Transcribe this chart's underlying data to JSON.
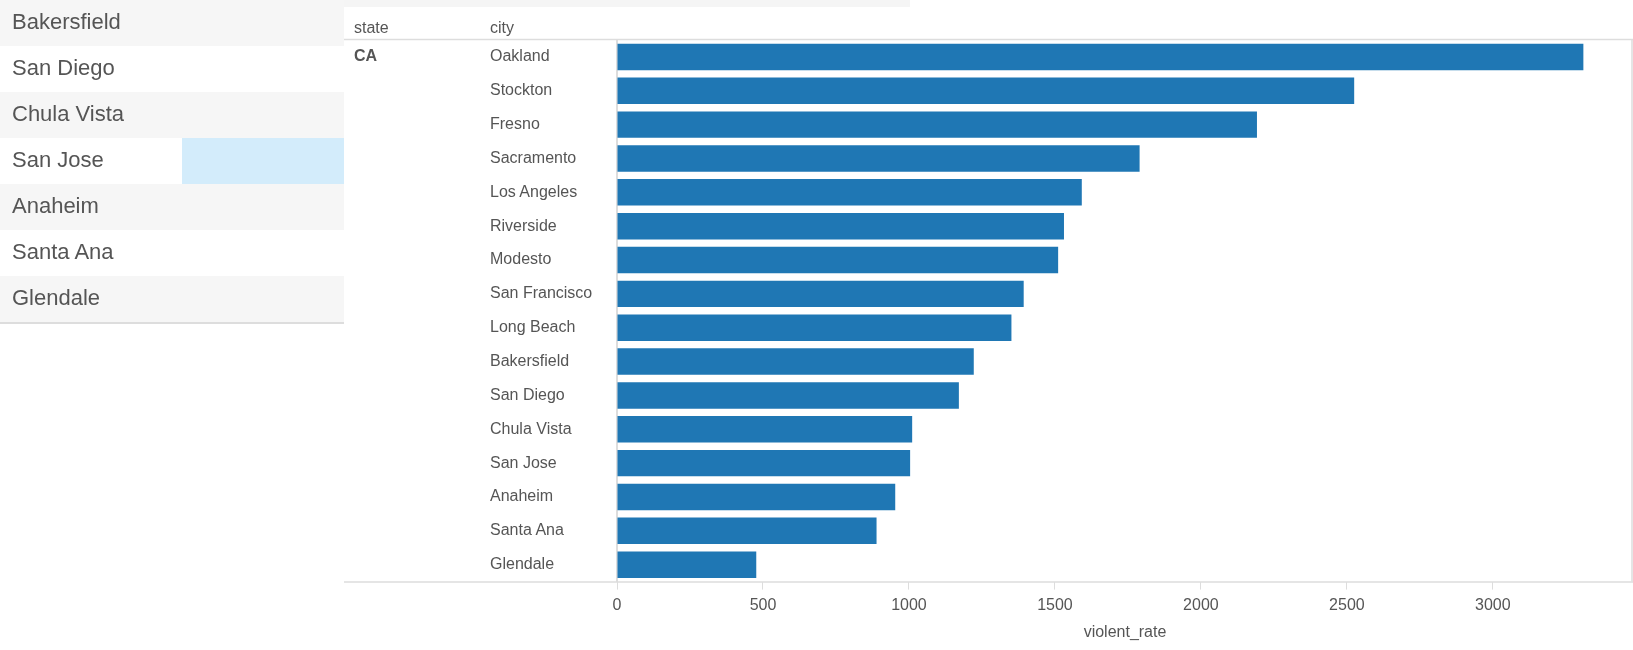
{
  "chart_data": [
    {
      "type": "other",
      "annotations": [
        "Bakersfield",
        "San Diego",
        "Chula Vista",
        "San Jose",
        "Anaheim",
        "Santa Ana",
        "Glendale"
      ]
    },
    {
      "type": "bar",
      "orientation": "horizontal",
      "ylabel": "city",
      "annotations": [
        "state",
        "CA"
      ],
      "xlabel": "violent_rate",
      "color": "#1f77b4",
      "categories": [
        "Oakland",
        "Stockton",
        "Fresno",
        "Sacramento",
        "Los Angeles",
        "Riverside",
        "Modesto",
        "San Francisco",
        "Long Beach",
        "Bakersfield",
        "San Diego",
        "Chula Vista",
        "San Jose",
        "Anaheim",
        "Santa Ana",
        "Glendale"
      ],
      "values": [
        3310,
        2525,
        2192,
        1790,
        1592,
        1531,
        1511,
        1393,
        1351,
        1222,
        1171,
        1011,
        1004,
        953,
        889,
        477
      ],
      "xlim": [
        0,
        3480
      ],
      "xticks": [
        0,
        500,
        1000,
        1500,
        2000,
        2500,
        3000
      ],
      "grid": false,
      "legend": false
    }
  ]
}
